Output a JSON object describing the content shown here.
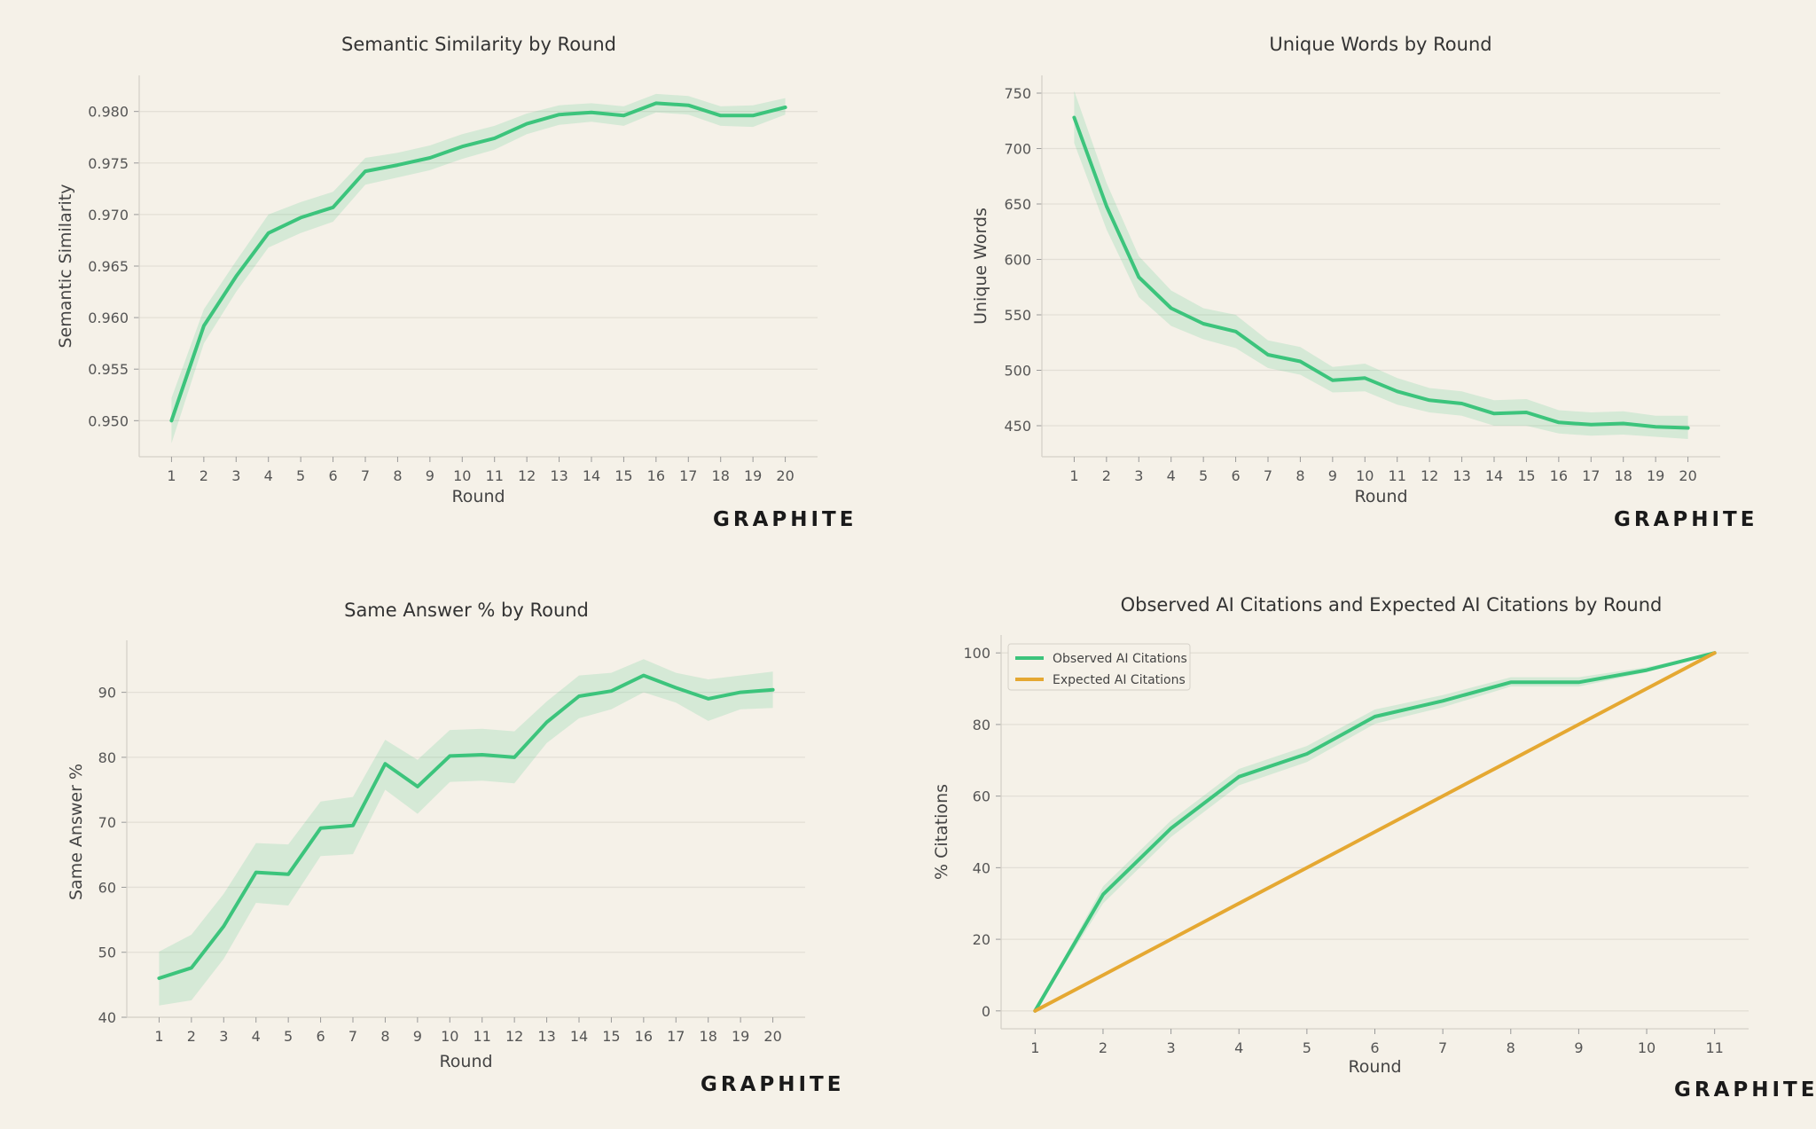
{
  "brand": "GRAPHITE",
  "colors": {
    "background": "#f5f1e8",
    "observed": "#3cc47c",
    "band": "#3cc47c",
    "expected": "#e5a832"
  },
  "chart_data": [
    {
      "type": "line",
      "title": "Semantic Similarity by Round",
      "xlabel": "Round",
      "ylabel": "Semantic Similarity",
      "x": [
        1,
        2,
        3,
        4,
        5,
        6,
        7,
        8,
        9,
        10,
        11,
        12,
        13,
        14,
        15,
        16,
        17,
        18,
        19,
        20
      ],
      "xlim": [
        0,
        21
      ],
      "ylim": [
        0.9465,
        0.9835
      ],
      "yticks": [
        0.95,
        0.955,
        0.96,
        0.965,
        0.97,
        0.975,
        0.98
      ],
      "ytick_labels": [
        "0.950",
        "0.955",
        "0.960",
        "0.965",
        "0.970",
        "0.975",
        "0.980"
      ],
      "grid": true,
      "series": [
        {
          "values": [
            0.95,
            0.9592,
            0.964,
            0.9682,
            0.9697,
            0.9707,
            0.9742,
            0.9748,
            0.9755,
            0.9766,
            0.9774,
            0.9788,
            0.9797,
            0.9799,
            0.9796,
            0.9808,
            0.9806,
            0.9796,
            0.9796,
            0.9804
          ],
          "lower": [
            0.9478,
            0.9575,
            0.9625,
            0.9668,
            0.9682,
            0.9693,
            0.9729,
            0.9736,
            0.9743,
            0.9754,
            0.9763,
            0.9778,
            0.9787,
            0.979,
            0.9786,
            0.9799,
            0.9797,
            0.9786,
            0.9785,
            0.9797
          ],
          "upper": [
            0.9522,
            0.9608,
            0.9655,
            0.97,
            0.9712,
            0.9722,
            0.9755,
            0.976,
            0.9767,
            0.9778,
            0.9786,
            0.9798,
            0.9806,
            0.9808,
            0.9805,
            0.9817,
            0.9815,
            0.9805,
            0.9806,
            0.9813
          ]
        }
      ]
    },
    {
      "type": "line",
      "title": "Unique Words by Round",
      "xlabel": "Round",
      "ylabel": "Unique Words",
      "x": [
        1,
        2,
        3,
        4,
        5,
        6,
        7,
        8,
        9,
        10,
        11,
        12,
        13,
        14,
        15,
        16,
        17,
        18,
        19,
        20
      ],
      "xlim": [
        0,
        21
      ],
      "ylim": [
        422,
        766
      ],
      "yticks": [
        450,
        500,
        550,
        600,
        650,
        700,
        750
      ],
      "ytick_labels": [
        "450",
        "500",
        "550",
        "600",
        "650",
        "700",
        "750"
      ],
      "grid": true,
      "series": [
        {
          "values": [
            728,
            648,
            584,
            556,
            542,
            535,
            514,
            508,
            491,
            493,
            481,
            473,
            470,
            461,
            462,
            453,
            451,
            452,
            449,
            448
          ],
          "lower": [
            705,
            627,
            566,
            540,
            528,
            520,
            502,
            496,
            480,
            481,
            469,
            462,
            459,
            450,
            450,
            443,
            441,
            442,
            440,
            438
          ],
          "upper": [
            752,
            669,
            603,
            572,
            556,
            550,
            527,
            521,
            503,
            506,
            493,
            484,
            481,
            473,
            474,
            464,
            462,
            463,
            459,
            459
          ]
        }
      ]
    },
    {
      "type": "line",
      "title": "Same Answer % by Round",
      "xlabel": "Round",
      "ylabel": "Same Answer %",
      "x": [
        1,
        2,
        3,
        4,
        5,
        6,
        7,
        8,
        9,
        10,
        11,
        12,
        13,
        14,
        15,
        16,
        17,
        18,
        19,
        20
      ],
      "xlim": [
        0,
        21
      ],
      "ylim": [
        40,
        98
      ],
      "yticks": [
        40,
        50,
        60,
        70,
        80,
        90
      ],
      "ytick_labels": [
        "40",
        "50",
        "60",
        "70",
        "80",
        "90"
      ],
      "grid": true,
      "series": [
        {
          "values": [
            46,
            47.6,
            54,
            62.3,
            62.0,
            69.1,
            69.5,
            79.0,
            75.5,
            80.2,
            80.4,
            80.0,
            85.4,
            89.4,
            90.2,
            92.6,
            90.7,
            89.0,
            90.0,
            90.4
          ],
          "lower": [
            41.8,
            42.6,
            49.0,
            57.6,
            57.2,
            64.8,
            65.1,
            75.0,
            71.3,
            76.2,
            76.4,
            76.0,
            82.2,
            86.0,
            87.4,
            90.0,
            88.4,
            85.6,
            87.4,
            87.6
          ],
          "upper": [
            50.1,
            52.7,
            59.0,
            66.8,
            66.6,
            73.2,
            73.9,
            82.7,
            79.6,
            84.2,
            84.4,
            84.0,
            88.6,
            92.6,
            93.0,
            95.1,
            93.0,
            92.0,
            92.6,
            93.2
          ]
        }
      ]
    },
    {
      "type": "line",
      "title": "Observed AI Citations and Expected AI Citations by Round",
      "xlabel": "Round",
      "ylabel": "% Citations",
      "x": [
        1,
        2,
        3,
        4,
        5,
        6,
        7,
        8,
        9,
        10,
        11
      ],
      "xlim": [
        0.5,
        11.5
      ],
      "ylim": [
        -5,
        105
      ],
      "yticks": [
        0,
        20,
        40,
        60,
        80,
        100
      ],
      "ytick_labels": [
        "0",
        "20",
        "40",
        "60",
        "80",
        "100"
      ],
      "grid": true,
      "legend": "top-left",
      "series": [
        {
          "name": "Observed AI Citations",
          "values": [
            0,
            32.5,
            51,
            65.4,
            71.8,
            82.2,
            86.6,
            91.8,
            91.8,
            95.2,
            100
          ],
          "lower": [
            0,
            30.0,
            48.6,
            63.0,
            69.5,
            80.2,
            84.8,
            90.6,
            90.6,
            94.6,
            100
          ],
          "upper": [
            0,
            34.8,
            53.2,
            67.6,
            74.0,
            84.2,
            88.2,
            93.2,
            93.2,
            96.0,
            100
          ]
        },
        {
          "name": "Expected AI Citations",
          "values": [
            0,
            10,
            20,
            30,
            40,
            50,
            60,
            70,
            80,
            90,
            100
          ]
        }
      ]
    }
  ]
}
